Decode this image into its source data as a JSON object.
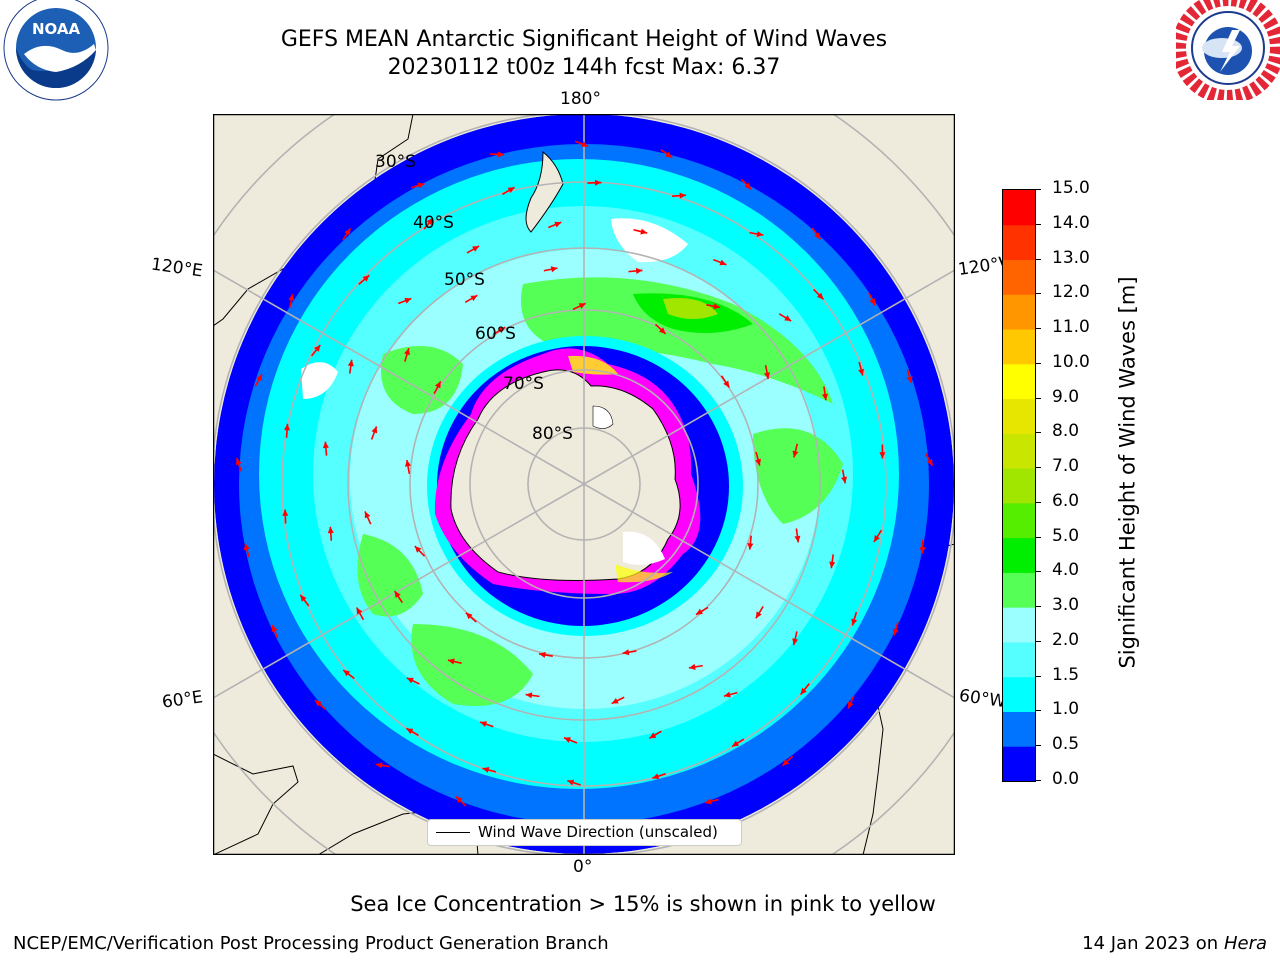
{
  "header": {
    "title_line1": "GEFS MEAN Antarctic Significant Height of Wind Waves",
    "title_line2": "20230112 t00z 144h fcst   Max: 6.37"
  },
  "logos": {
    "left": "NOAA",
    "right": "NATIONAL WEATHER SERVICE"
  },
  "map": {
    "projection": "south polar stereographic",
    "longitude_labels": {
      "top": "180°",
      "bottom": "0°",
      "upper_left": "120°E",
      "upper_right": "120°W",
      "lower_left": "60°E",
      "lower_right": "60°W"
    },
    "latitude_labels": [
      "30°S",
      "40°S",
      "50°S",
      "60°S",
      "70°S",
      "80°S"
    ],
    "legend": {
      "label": "Wind Wave Direction (unscaled)"
    },
    "arrow_color": "#ff0000",
    "land_color": "#efebdc",
    "ice_colors": [
      "#ff00ff",
      "#ffff00"
    ]
  },
  "colorbar": {
    "title": "Significant Height of Wind Waves [m]",
    "ticks": [
      "0.0",
      "0.5",
      "1.0",
      "1.5",
      "2.0",
      "3.0",
      "4.0",
      "5.0",
      "6.0",
      "7.0",
      "8.0",
      "9.0",
      "10.0",
      "11.0",
      "12.0",
      "13.0",
      "14.0",
      "15.0"
    ],
    "colors": [
      "#0000ff",
      "#0073ff",
      "#00ffff",
      "#55ffff",
      "#9bffff",
      "#55ff55",
      "#00ee00",
      "#55ee00",
      "#a0e600",
      "#c8e600",
      "#e6e600",
      "#ffff00",
      "#ffc800",
      "#ff9600",
      "#ff6400",
      "#ff3200",
      "#ff0000"
    ]
  },
  "footer": {
    "caption": "Sea Ice Concentration > 15% is shown in pink to yellow",
    "left": "NCEP/EMC/Verification Post Processing Product Generation Branch",
    "right_prefix": "14 Jan 2023 on ",
    "right_host": "Hera"
  }
}
